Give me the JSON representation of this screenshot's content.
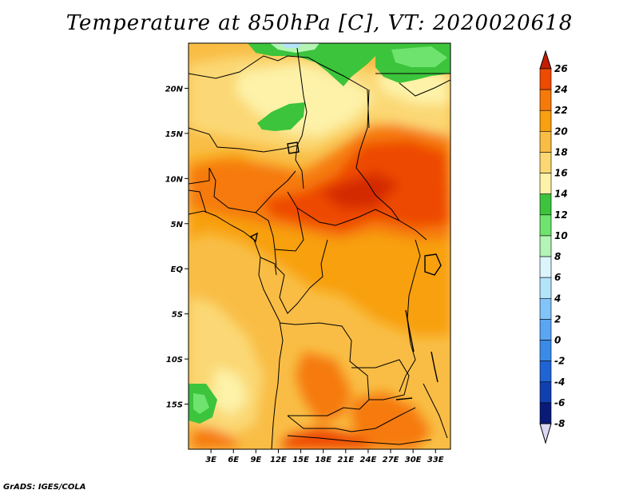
{
  "title": "Temperature at 850hPa [C], VT: 2020020618",
  "credit": "GrADS: IGES/COLA",
  "map": {
    "lon_range": [
      0,
      35
    ],
    "lat_range": [
      -20,
      25
    ],
    "lat_ticks": [
      {
        "value": 20,
        "label": "20N"
      },
      {
        "value": 15,
        "label": "15N"
      },
      {
        "value": 10,
        "label": "10N"
      },
      {
        "value": 5,
        "label": "5N"
      },
      {
        "value": 0,
        "label": "EQ"
      },
      {
        "value": -5,
        "label": "5S"
      },
      {
        "value": -10,
        "label": "10S"
      },
      {
        "value": -15,
        "label": "15S"
      }
    ],
    "lon_ticks": [
      {
        "value": 3,
        "label": "3E"
      },
      {
        "value": 6,
        "label": "6E"
      },
      {
        "value": 9,
        "label": "9E"
      },
      {
        "value": 12,
        "label": "12E"
      },
      {
        "value": 15,
        "label": "15E"
      },
      {
        "value": 18,
        "label": "18E"
      },
      {
        "value": 21,
        "label": "21E"
      },
      {
        "value": 24,
        "label": "24E"
      },
      {
        "value": 27,
        "label": "27E"
      },
      {
        "value": 30,
        "label": "30E"
      },
      {
        "value": 33,
        "label": "33E"
      }
    ]
  },
  "colorbar": {
    "levels": [
      26,
      24,
      22,
      20,
      18,
      16,
      14,
      12,
      10,
      8,
      6,
      4,
      2,
      0,
      -2,
      -4,
      -6,
      -8
    ],
    "labels": [
      "26",
      "24",
      "22",
      "20",
      "18",
      "16",
      "14",
      "12",
      "10",
      "8",
      "6",
      "4",
      "2",
      "0",
      "-2",
      "-4",
      "-6",
      "-8"
    ],
    "colors_top_to_bottom": [
      "#d42a00",
      "#ee4a00",
      "#f67a0a",
      "#f8a010",
      "#f9bd45",
      "#fbd874",
      "#fdf2a8",
      "#3cc43c",
      "#6ee36e",
      "#b4f4b4",
      "#dcf4fc",
      "#b4e4fa",
      "#82c4f8",
      "#5aa6f4",
      "#3a8ae8",
      "#1e64d4",
      "#1040b0",
      "#0a1a78"
    ],
    "top_cap_color": "#c41e00",
    "bottom_cap_color": "#dcd8f4"
  }
}
